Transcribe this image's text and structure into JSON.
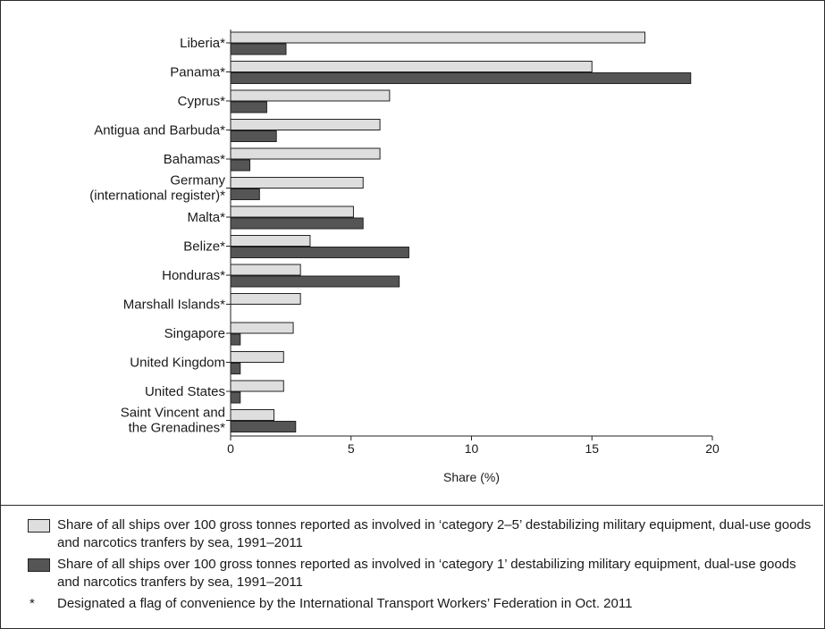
{
  "chart_data": {
    "type": "bar",
    "orientation": "horizontal",
    "categories": [
      "Liberia*",
      "Panama*",
      "Cyprus*",
      "Antigua and Barbuda*",
      "Bahamas*",
      "Germany (international register)*",
      "Malta*",
      "Belize*",
      "Honduras*",
      "Marshall Islands*",
      "Singapore",
      "United Kingdom",
      "United States",
      "Saint Vincent and the Grenadines*"
    ],
    "category_lines": [
      [
        "Liberia*"
      ],
      [
        "Panama*"
      ],
      [
        "Cyprus*"
      ],
      [
        "Antigua and Barbuda*"
      ],
      [
        "Bahamas*"
      ],
      [
        "Germany",
        "(international register)*"
      ],
      [
        "Malta*"
      ],
      [
        "Belize*"
      ],
      [
        "Honduras*"
      ],
      [
        "Marshall Islands*"
      ],
      [
        "Singapore"
      ],
      [
        "United Kingdom"
      ],
      [
        "United States"
      ],
      [
        "Saint Vincent and",
        "the Grenadines*"
      ]
    ],
    "series": [
      {
        "name": "Share of all ships over 100 gross tonnes reported as involved in ‘category 2–5’ destabilizing military equipment, dual-use goods and narcotics tranfers by sea, 1991–2011",
        "color": "#dedede",
        "values": [
          17.2,
          15.0,
          6.6,
          6.2,
          6.2,
          5.5,
          5.1,
          3.3,
          2.9,
          2.9,
          2.6,
          2.2,
          2.2,
          1.8
        ]
      },
      {
        "name": "Share of all ships over 100 gross tonnes reported as involved in ‘category 1’ destabilizing military equipment, dual-use goods and narcotics tranfers by sea, 1991–2011",
        "color": "#555555",
        "values": [
          2.3,
          19.1,
          1.5,
          1.9,
          0.8,
          1.2,
          5.5,
          7.4,
          7.0,
          0.0,
          0.4,
          0.4,
          0.4,
          2.7
        ]
      }
    ],
    "xlabel": "Share (%)",
    "xlim": [
      0,
      20
    ],
    "xticks": [
      0,
      5,
      10,
      15,
      20
    ],
    "grid": false,
    "legend_position": "bottom"
  },
  "legend": {
    "light_text": "Share of all ships over 100 gross tonnes reported as involved in ‘category 2–5’ destabilizing military equipment, dual-use goods and narcotics tranfers by sea, 1991–2011",
    "dark_text": "Share of all ships over 100 gross tonnes reported as involved in ‘category 1’ destabilizing military equipment, dual-use goods and narcotics tranfers by sea, 1991–2011",
    "note_marker": "*",
    "note_text": "Designated a flag of convenience by the International Transport Workers’ Federation in Oct. 2011"
  }
}
